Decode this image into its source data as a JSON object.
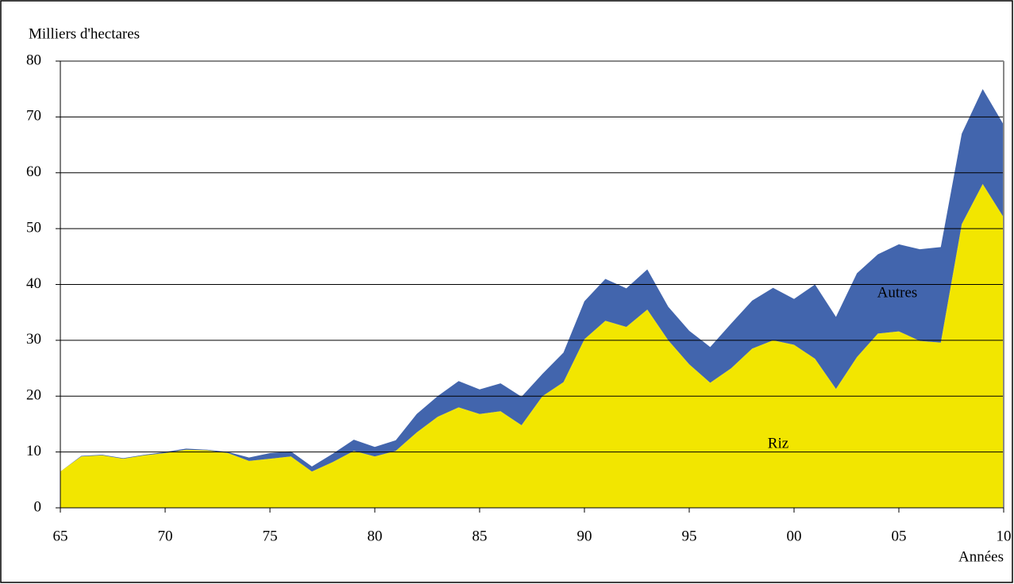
{
  "chart_data": {
    "type": "stacked_area",
    "y_label": "Milliers d'hectares",
    "x_label": "Années",
    "categories": [
      "65",
      null,
      null,
      null,
      null,
      "70",
      null,
      null,
      null,
      null,
      "75",
      null,
      null,
      null,
      null,
      "80",
      null,
      null,
      null,
      null,
      "85",
      null,
      null,
      null,
      null,
      "90",
      null,
      null,
      null,
      null,
      "95",
      null,
      null,
      null,
      null,
      "00",
      null,
      null,
      null,
      null,
      "05",
      null,
      null,
      null,
      null,
      "10"
    ],
    "series": [
      {
        "name": "Riz",
        "color": "#f2e600",
        "values": [
          6.5,
          9.2,
          9.4,
          8.8,
          9.4,
          9.8,
          10.4,
          10.3,
          9.8,
          8.4,
          8.8,
          9.2,
          6.5,
          8.2,
          10.2,
          9.2,
          10.2,
          13.5,
          16.3,
          18.0,
          16.8,
          17.3,
          14.8,
          20.0,
          22.5,
          30.2,
          33.5,
          32.4,
          35.5,
          30.0,
          25.7,
          22.4,
          25.0,
          28.5,
          30.0,
          29.2,
          26.7,
          21.3,
          27.0,
          31.2,
          31.6,
          29.9,
          29.6,
          50.8,
          58.0,
          52.0
        ]
      },
      {
        "name": "Autres",
        "color": "#4265ad",
        "values": [
          0,
          0.1,
          0.1,
          0.1,
          0.1,
          0.2,
          0.2,
          0.1,
          0.2,
          0.6,
          1.0,
          0.9,
          0.9,
          1.5,
          2.0,
          1.7,
          1.9,
          3.3,
          3.7,
          4.7,
          4.4,
          5.0,
          5.1,
          4.0,
          5.3,
          6.8,
          7.5,
          6.9,
          7.2,
          6.0,
          6.0,
          6.4,
          8.0,
          8.6,
          9.4,
          8.2,
          13.3,
          12.9,
          15.0,
          14.2,
          15.6,
          16.4,
          17.1,
          16.2,
          17.0,
          16.6
        ]
      }
    ],
    "ylim": [
      0,
      80
    ],
    "yticks": [
      0,
      10,
      20,
      30,
      40,
      50,
      60,
      70,
      80
    ],
    "grid": true
  }
}
